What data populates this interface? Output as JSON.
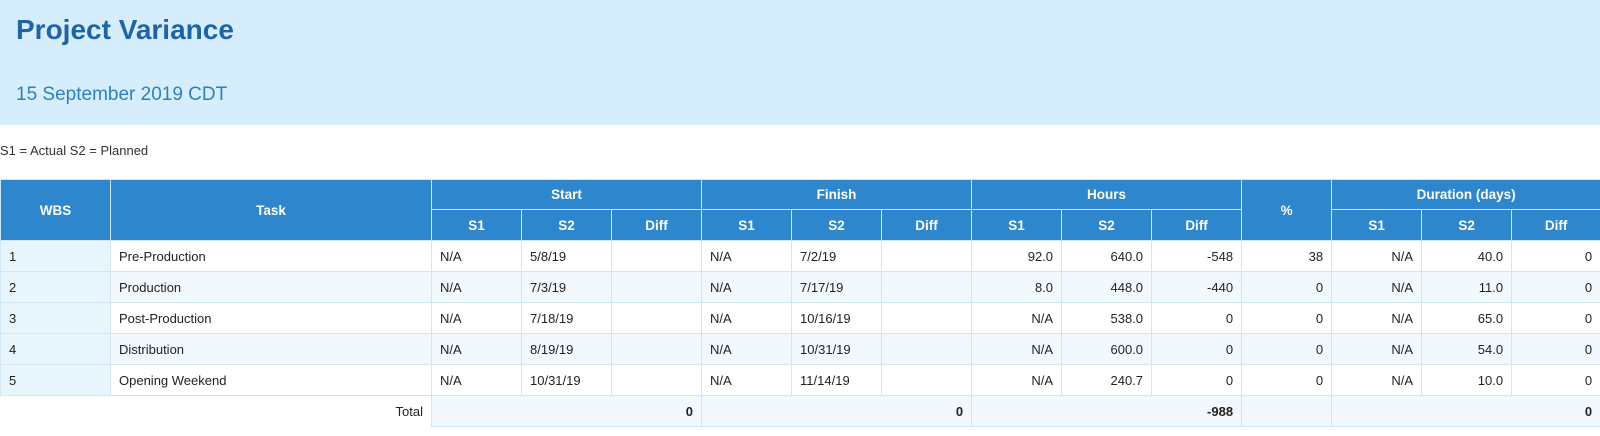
{
  "header": {
    "title": "Project Variance",
    "subtitle": "15 September 2019 CDT"
  },
  "legend_note": "S1 = Actual S2 = Planned",
  "table": {
    "groups": {
      "wbs": "WBS",
      "task": "Task",
      "start": "Start",
      "finish": "Finish",
      "hours": "Hours",
      "percent": "%",
      "duration": "Duration (days)"
    },
    "sub": {
      "s1": "S1",
      "s2": "S2",
      "diff": "Diff"
    },
    "rows": [
      {
        "wbs": "1",
        "task": "Pre-Production",
        "start_s1": "N/A",
        "start_s2": "5/8/19",
        "start_diff": "",
        "finish_s1": "N/A",
        "finish_s2": "7/2/19",
        "finish_diff": "",
        "hours_s1": "92.0",
        "hours_s2": "640.0",
        "hours_diff": "-548",
        "percent": "38",
        "dur_s1": "N/A",
        "dur_s2": "40.0",
        "dur_diff": "0"
      },
      {
        "wbs": "2",
        "task": "Production",
        "start_s1": "N/A",
        "start_s2": "7/3/19",
        "start_diff": "",
        "finish_s1": "N/A",
        "finish_s2": "7/17/19",
        "finish_diff": "",
        "hours_s1": "8.0",
        "hours_s2": "448.0",
        "hours_diff": "-440",
        "percent": "0",
        "dur_s1": "N/A",
        "dur_s2": "11.0",
        "dur_diff": "0"
      },
      {
        "wbs": "3",
        "task": "Post-Production",
        "start_s1": "N/A",
        "start_s2": "7/18/19",
        "start_diff": "",
        "finish_s1": "N/A",
        "finish_s2": "10/16/19",
        "finish_diff": "",
        "hours_s1": "N/A",
        "hours_s2": "538.0",
        "hours_diff": "0",
        "percent": "0",
        "dur_s1": "N/A",
        "dur_s2": "65.0",
        "dur_diff": "0"
      },
      {
        "wbs": "4",
        "task": "Distribution",
        "start_s1": "N/A",
        "start_s2": "8/19/19",
        "start_diff": "",
        "finish_s1": "N/A",
        "finish_s2": "10/31/19",
        "finish_diff": "",
        "hours_s1": "N/A",
        "hours_s2": "600.0",
        "hours_diff": "0",
        "percent": "0",
        "dur_s1": "N/A",
        "dur_s2": "54.0",
        "dur_diff": "0"
      },
      {
        "wbs": "5",
        "task": "Opening Weekend",
        "start_s1": "N/A",
        "start_s2": "10/31/19",
        "start_diff": "",
        "finish_s1": "N/A",
        "finish_s2": "11/14/19",
        "finish_diff": "",
        "hours_s1": "N/A",
        "hours_s2": "240.7",
        "hours_diff": "0",
        "percent": "0",
        "dur_s1": "N/A",
        "dur_s2": "10.0",
        "dur_diff": "0"
      }
    ],
    "total": {
      "label": "Total",
      "start": "0",
      "finish": "0",
      "hours": "-988",
      "percent": "",
      "duration": "0"
    }
  },
  "colors": {
    "header_bg": "#d6eefc",
    "title": "#1e64a8",
    "table_header_bg": "#2e86cc",
    "border": "#cfe6f6"
  }
}
